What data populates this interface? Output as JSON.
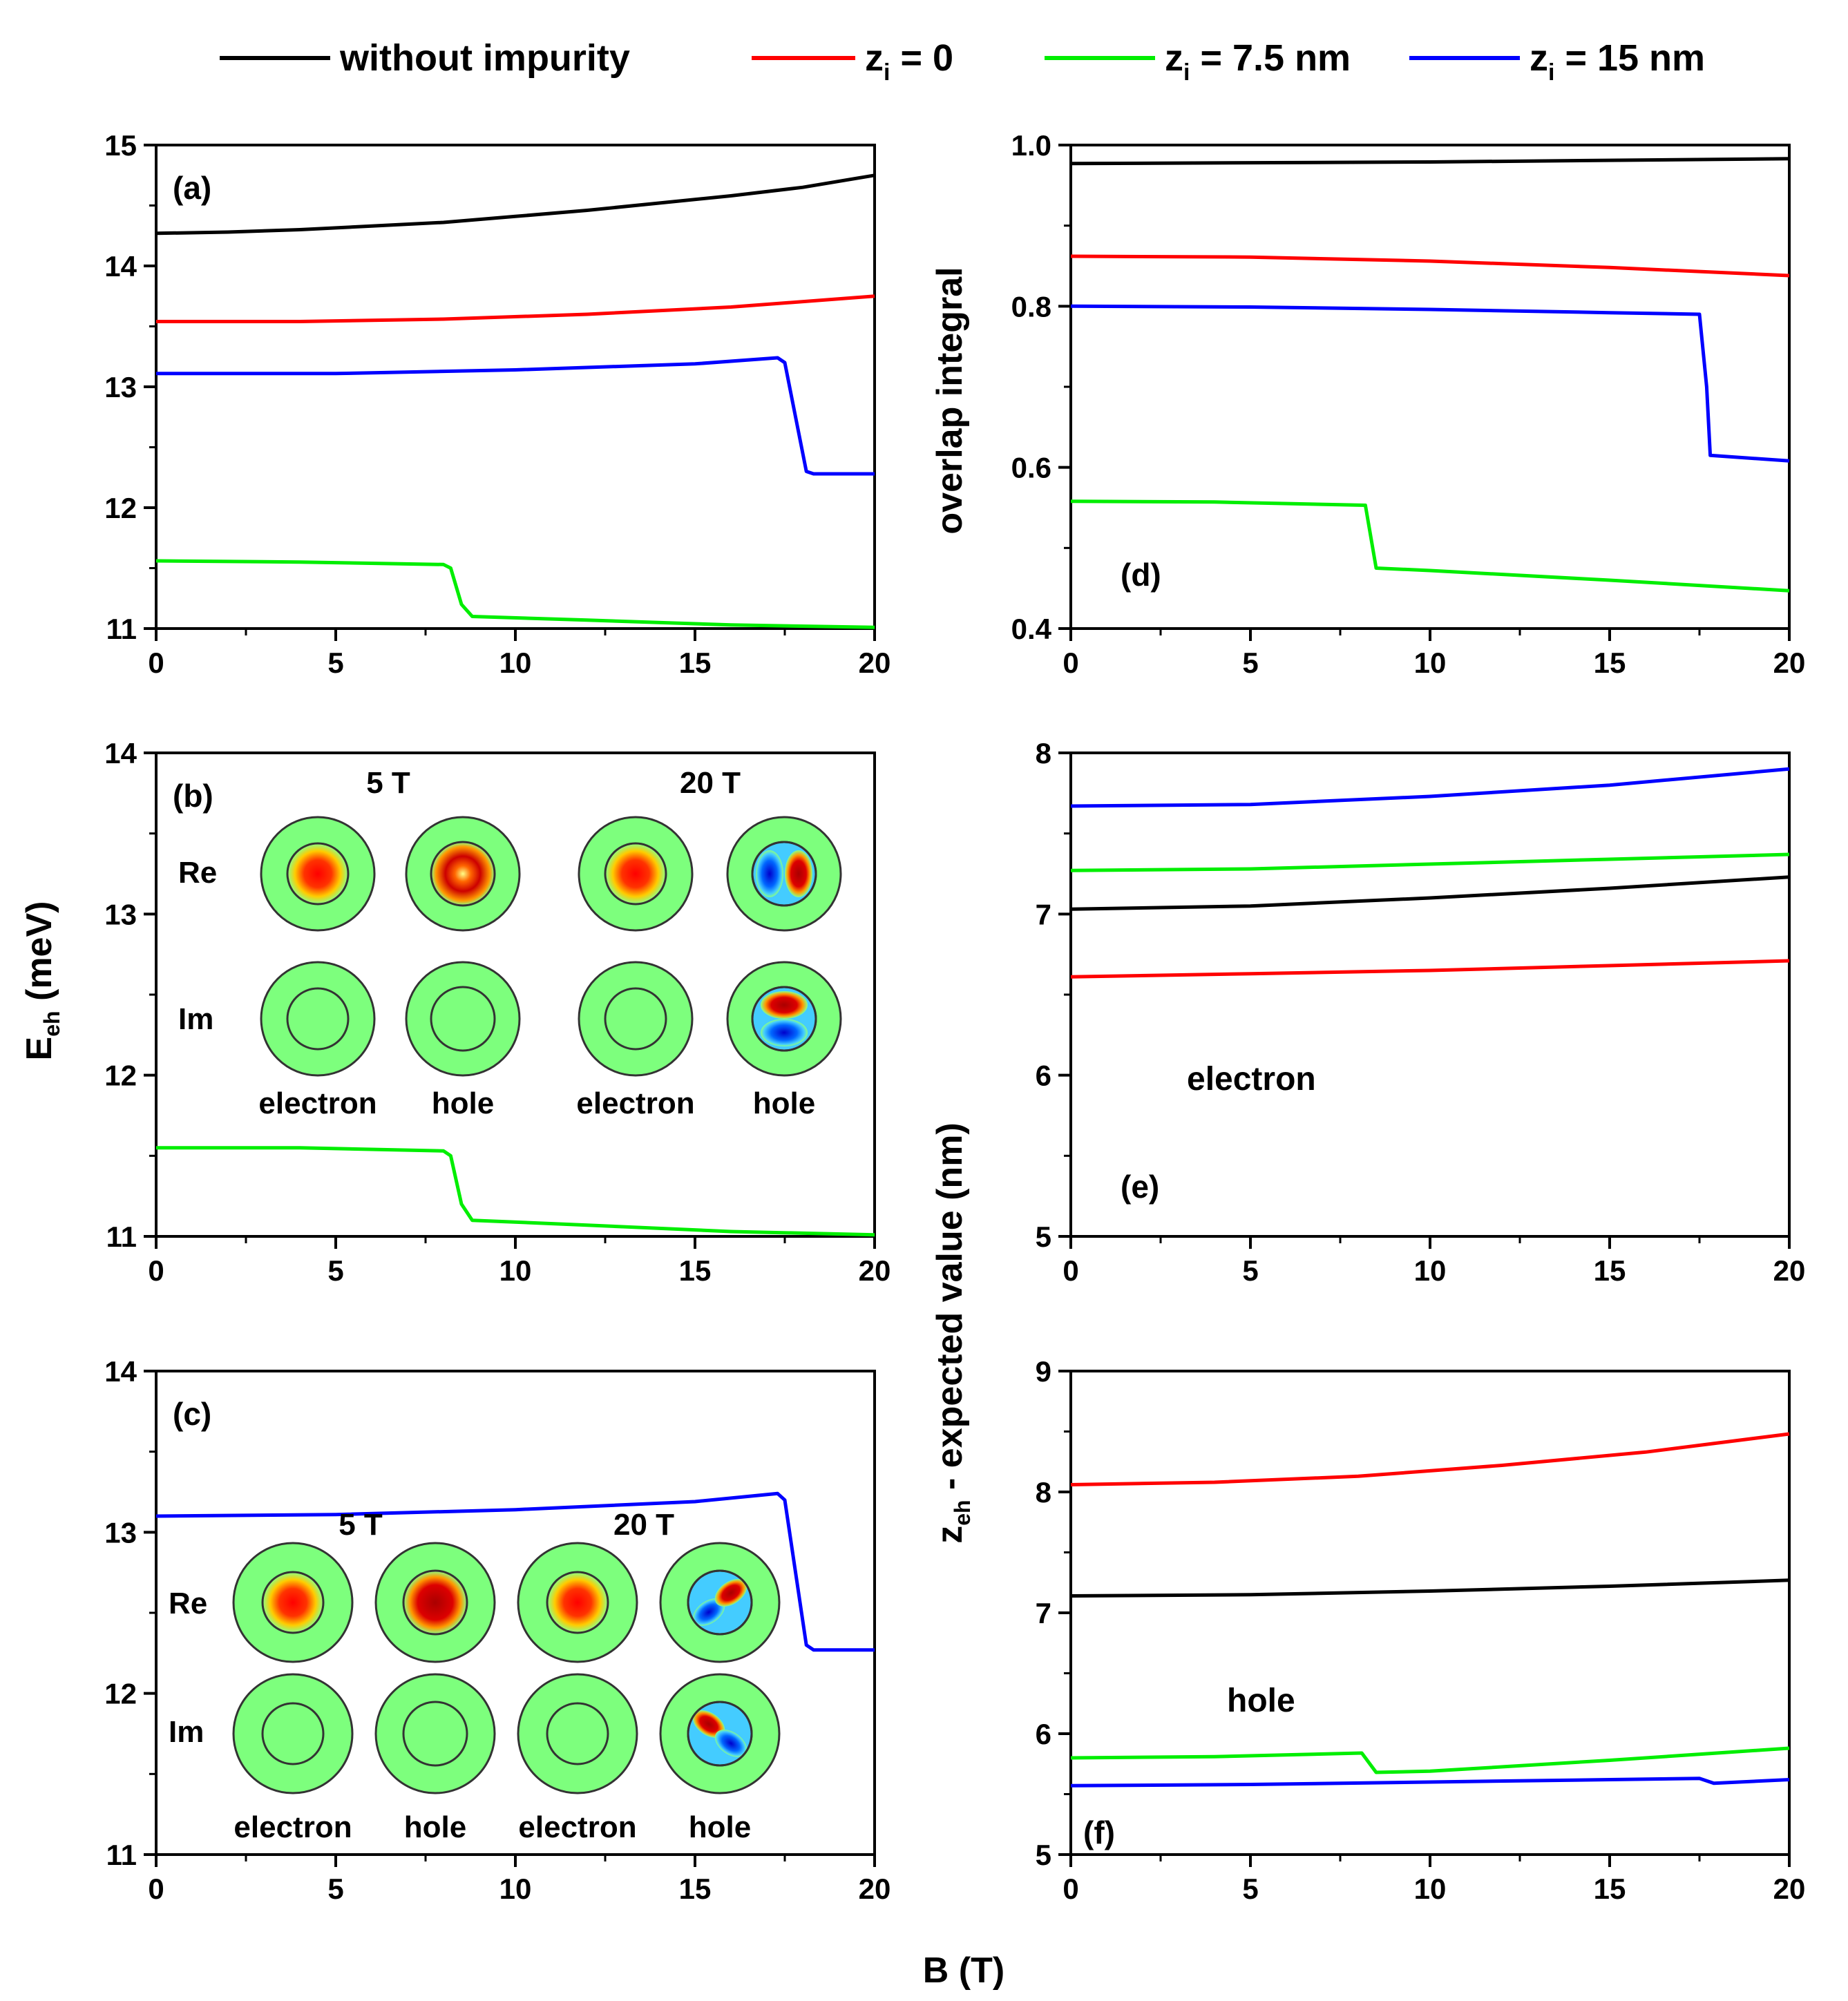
{
  "legend": {
    "entries": [
      {
        "key": "none",
        "label": "without impurity",
        "sub": "",
        "suffix": "",
        "color": "#000000"
      },
      {
        "key": "z0",
        "label": "z",
        "sub": "i",
        "suffix": " = 0",
        "color": "#ff0000"
      },
      {
        "key": "z75",
        "label": "z",
        "sub": "i",
        "suffix": " = 7.5 nm",
        "color": "#00ee00"
      },
      {
        "key": "z15",
        "label": "z",
        "sub": "i",
        "suffix": " = 15 nm",
        "color": "#0000ff"
      }
    ]
  },
  "axes": {
    "left_ylabel_main": "E",
    "left_ylabel_sub": "eh",
    "left_ylabel_unit": " (meV)",
    "right_ylabel_main_top": "overlap integral",
    "right_ylabel_main": "z",
    "right_ylabel_sub": "eh",
    "right_ylabel_unit": " - expected value (nm)",
    "xlabel": "B (T)"
  },
  "insets": {
    "b": {
      "field_low": "5 T",
      "field_high": "20 T",
      "row_re": "Re",
      "row_im": "Im",
      "labels": [
        "electron",
        "hole",
        "electron",
        "hole"
      ]
    },
    "c": {
      "field_low": "5 T",
      "field_high": "20 T",
      "row_re": "Re",
      "row_im": "Im",
      "labels": [
        "electron",
        "hole",
        "electron",
        "hole"
      ]
    }
  },
  "chart_data": [
    {
      "id": "a",
      "panel_label": "(a)",
      "type": "line",
      "xlim": [
        0,
        20
      ],
      "ylim": [
        11,
        15
      ],
      "xticks": [
        0,
        5,
        10,
        15,
        20
      ],
      "yticks": [
        11,
        12,
        13,
        14,
        15
      ],
      "xlabel": "B (T)",
      "ylabel": "E_eh (meV)",
      "series": [
        {
          "name": "without impurity",
          "color": "#000000",
          "points": [
            [
              0,
              14.27
            ],
            [
              2,
              14.28
            ],
            [
              4,
              14.3
            ],
            [
              6,
              14.33
            ],
            [
              8,
              14.36
            ],
            [
              10,
              14.41
            ],
            [
              12,
              14.46
            ],
            [
              14,
              14.52
            ],
            [
              16,
              14.58
            ],
            [
              18,
              14.65
            ],
            [
              20,
              14.75
            ]
          ]
        },
        {
          "name": "z_i = 0",
          "color": "#ff0000",
          "points": [
            [
              0,
              13.54
            ],
            [
              4,
              13.54
            ],
            [
              8,
              13.56
            ],
            [
              12,
              13.6
            ],
            [
              16,
              13.66
            ],
            [
              20,
              13.75
            ]
          ]
        },
        {
          "name": "z_i = 7.5 nm",
          "color": "#00ee00",
          "points": [
            [
              0,
              11.56
            ],
            [
              4,
              11.55
            ],
            [
              8,
              11.53
            ],
            [
              8.2,
              11.5
            ],
            [
              8.5,
              11.2
            ],
            [
              8.8,
              11.1
            ],
            [
              12,
              11.07
            ],
            [
              16,
              11.03
            ],
            [
              20,
              11.01
            ]
          ]
        },
        {
          "name": "z_i = 15 nm",
          "color": "#0000ff",
          "points": [
            [
              0,
              13.11
            ],
            [
              5,
              13.11
            ],
            [
              10,
              13.14
            ],
            [
              15,
              13.19
            ],
            [
              17.3,
              13.24
            ],
            [
              17.5,
              13.2
            ],
            [
              17.8,
              12.75
            ],
            [
              18.1,
              12.3
            ],
            [
              18.3,
              12.28
            ],
            [
              20,
              12.28
            ]
          ]
        }
      ]
    },
    {
      "id": "b",
      "panel_label": "(b)",
      "type": "line",
      "xlim": [
        0,
        20
      ],
      "ylim": [
        11,
        14
      ],
      "xticks": [
        0,
        5,
        10,
        15,
        20
      ],
      "yticks": [
        11,
        12,
        13,
        14
      ],
      "xlabel": "B (T)",
      "ylabel": "E_eh (meV)",
      "series": [
        {
          "name": "z_i = 7.5 nm",
          "color": "#00ee00",
          "points": [
            [
              0,
              11.55
            ],
            [
              4,
              11.55
            ],
            [
              8,
              11.53
            ],
            [
              8.2,
              11.5
            ],
            [
              8.5,
              11.2
            ],
            [
              8.8,
              11.1
            ],
            [
              12,
              11.07
            ],
            [
              16,
              11.03
            ],
            [
              20,
              11.01
            ]
          ]
        }
      ]
    },
    {
      "id": "c",
      "panel_label": "(c)",
      "type": "line",
      "xlim": [
        0,
        20
      ],
      "ylim": [
        11,
        14
      ],
      "xticks": [
        0,
        5,
        10,
        15,
        20
      ],
      "yticks": [
        11,
        12,
        13,
        14
      ],
      "xlabel": "B (T)",
      "ylabel": "E_eh (meV)",
      "series": [
        {
          "name": "z_i = 15 nm",
          "color": "#0000ff",
          "points": [
            [
              0,
              13.1
            ],
            [
              5,
              13.11
            ],
            [
              10,
              13.14
            ],
            [
              15,
              13.19
            ],
            [
              17.3,
              13.24
            ],
            [
              17.5,
              13.2
            ],
            [
              17.8,
              12.75
            ],
            [
              18.1,
              12.3
            ],
            [
              18.3,
              12.27
            ],
            [
              20,
              12.27
            ]
          ]
        }
      ]
    },
    {
      "id": "d",
      "panel_label": "(d)",
      "type": "line",
      "xlim": [
        0,
        20
      ],
      "ylim": [
        0.4,
        1.0
      ],
      "xticks": [
        0,
        5,
        10,
        15,
        20
      ],
      "yticks": [
        0.4,
        0.6,
        0.8,
        1.0
      ],
      "ytick_labels": [
        "0.4",
        "0.6",
        "0.8",
        "1.0"
      ],
      "xlabel": "B (T)",
      "ylabel": "overlap integral",
      "series": [
        {
          "name": "without impurity",
          "color": "#000000",
          "points": [
            [
              0,
              0.977
            ],
            [
              10,
              0.979
            ],
            [
              20,
              0.983
            ]
          ]
        },
        {
          "name": "z_i = 0",
          "color": "#ff0000",
          "points": [
            [
              0,
              0.862
            ],
            [
              5,
              0.861
            ],
            [
              10,
              0.856
            ],
            [
              15,
              0.848
            ],
            [
              20,
              0.838
            ]
          ]
        },
        {
          "name": "z_i = 7.5 nm",
          "color": "#00ee00",
          "points": [
            [
              0,
              0.558
            ],
            [
              4,
              0.557
            ],
            [
              8.2,
              0.553
            ],
            [
              8.5,
              0.475
            ],
            [
              10,
              0.472
            ],
            [
              15,
              0.46
            ],
            [
              20,
              0.447
            ]
          ]
        },
        {
          "name": "z_i = 15 nm",
          "color": "#0000ff",
          "points": [
            [
              0,
              0.8
            ],
            [
              5,
              0.799
            ],
            [
              10,
              0.796
            ],
            [
              15,
              0.792
            ],
            [
              17.5,
              0.79
            ],
            [
              17.7,
              0.7
            ],
            [
              17.8,
              0.615
            ],
            [
              20,
              0.608
            ]
          ]
        }
      ]
    },
    {
      "id": "e",
      "panel_label": "(e)",
      "type": "line",
      "xlim": [
        0,
        20
      ],
      "ylim": [
        5,
        8
      ],
      "xticks": [
        0,
        5,
        10,
        15,
        20
      ],
      "yticks": [
        5,
        6,
        7,
        8
      ],
      "xlabel": "B (T)",
      "ylabel": "z_eh - expected value (nm)",
      "series": [
        {
          "name": "z_i = 15 nm",
          "color": "#0000ff",
          "points": [
            [
              0,
              7.67
            ],
            [
              5,
              7.68
            ],
            [
              10,
              7.73
            ],
            [
              15,
              7.8
            ],
            [
              20,
              7.9
            ]
          ]
        },
        {
          "name": "z_i = 7.5 nm",
          "color": "#00ee00",
          "points": [
            [
              0,
              7.27
            ],
            [
              5,
              7.28
            ],
            [
              10,
              7.31
            ],
            [
              15,
              7.34
            ],
            [
              20,
              7.37
            ]
          ]
        },
        {
          "name": "without impurity",
          "color": "#000000",
          "points": [
            [
              0,
              7.03
            ],
            [
              5,
              7.05
            ],
            [
              10,
              7.1
            ],
            [
              15,
              7.16
            ],
            [
              20,
              7.23
            ]
          ]
        },
        {
          "name": "z_i = 0",
          "color": "#ff0000",
          "points": [
            [
              0,
              6.61
            ],
            [
              5,
              6.63
            ],
            [
              10,
              6.65
            ],
            [
              15,
              6.68
            ],
            [
              20,
              6.71
            ]
          ]
        }
      ]
    },
    {
      "id": "f",
      "panel_label": "(f)",
      "type": "line",
      "xlim": [
        0,
        20
      ],
      "ylim": [
        5,
        9
      ],
      "xticks": [
        0,
        5,
        10,
        15,
        20
      ],
      "yticks": [
        5,
        6,
        7,
        8,
        9
      ],
      "xlabel": "B (T)",
      "ylabel": "z_eh - expected value (nm)",
      "series": [
        {
          "name": "z_i = 0",
          "color": "#ff0000",
          "points": [
            [
              0,
              8.06
            ],
            [
              4,
              8.08
            ],
            [
              8,
              8.13
            ],
            [
              12,
              8.22
            ],
            [
              16,
              8.33
            ],
            [
              20,
              8.48
            ]
          ]
        },
        {
          "name": "without impurity",
          "color": "#000000",
          "points": [
            [
              0,
              7.14
            ],
            [
              5,
              7.15
            ],
            [
              10,
              7.18
            ],
            [
              15,
              7.22
            ],
            [
              20,
              7.27
            ]
          ]
        },
        {
          "name": "z_i = 7.5 nm",
          "color": "#00ee00",
          "points": [
            [
              0,
              5.8
            ],
            [
              4,
              5.81
            ],
            [
              8.1,
              5.84
            ],
            [
              8.5,
              5.68
            ],
            [
              10,
              5.69
            ],
            [
              15,
              5.78
            ],
            [
              20,
              5.88
            ]
          ]
        },
        {
          "name": "z_i = 15 nm",
          "color": "#0000ff",
          "points": [
            [
              0,
              5.57
            ],
            [
              5,
              5.58
            ],
            [
              10,
              5.6
            ],
            [
              15,
              5.62
            ],
            [
              17.5,
              5.63
            ],
            [
              17.9,
              5.59
            ],
            [
              20,
              5.62
            ]
          ]
        }
      ]
    }
  ],
  "annotations": {
    "e": "electron",
    "f": "hole"
  }
}
